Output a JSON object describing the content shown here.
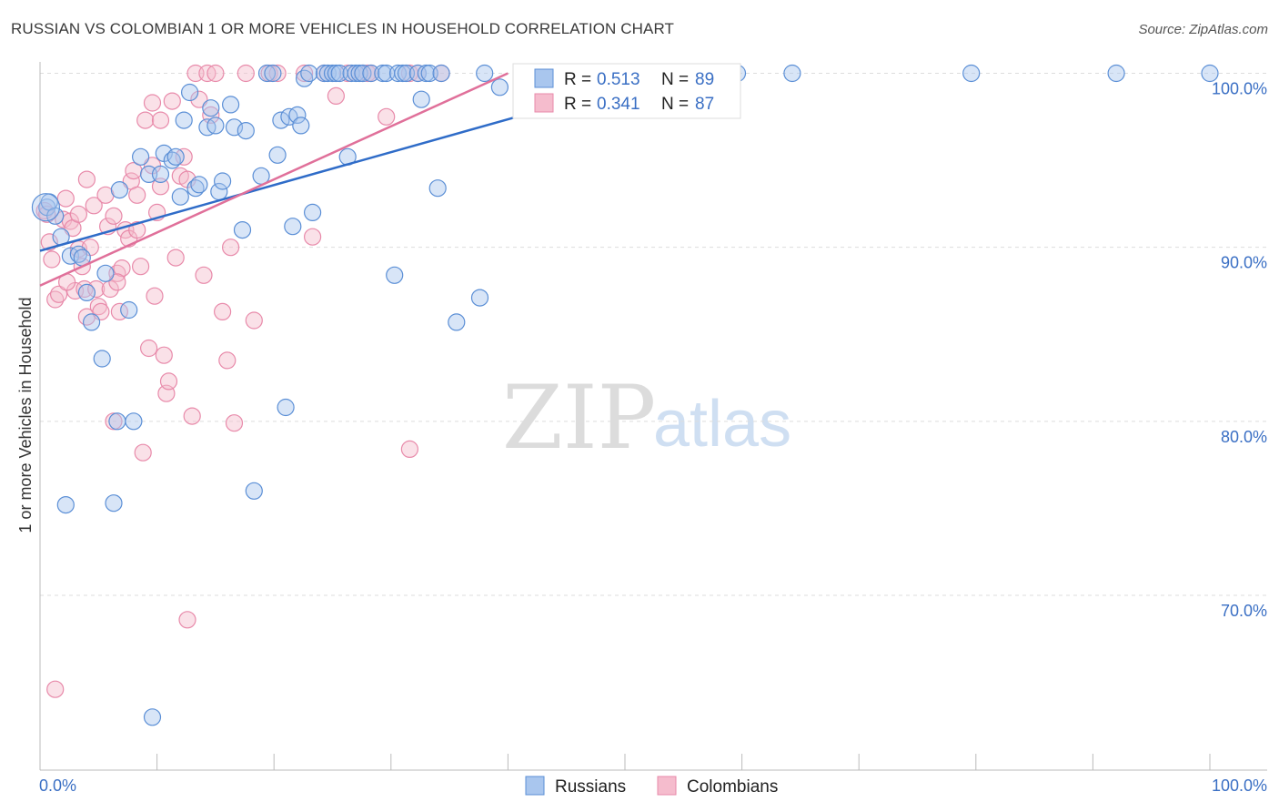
{
  "header": {
    "title": "RUSSIAN VS COLOMBIAN 1 OR MORE VEHICLES IN HOUSEHOLD CORRELATION CHART",
    "source": "Source: ZipAtlas.com"
  },
  "watermark": {
    "zip": "ZIP",
    "atlas": "atlas"
  },
  "colors": {
    "russians": "#5b8fd6",
    "russians_fill": "#a9c6ee",
    "russians_line": "#2f6cc8",
    "colombians": "#e88aaa",
    "colombians_fill": "#f5bccd",
    "colombians_line": "#e0709a",
    "accent_text": "#3a6fc4"
  },
  "legend_box": {
    "rows": [
      {
        "r_label": "R = ",
        "r_value": "0.513",
        "n_label": "N = ",
        "n_value": "89"
      },
      {
        "r_label": "R = ",
        "r_value": "0.341",
        "n_label": "N = ",
        "n_value": "87"
      }
    ]
  },
  "bottom_legend": [
    "Russians",
    "Colombians"
  ],
  "chart_data": {
    "type": "scatter",
    "title": "RUSSIAN VS COLOMBIAN 1 OR MORE VEHICLES IN HOUSEHOLD CORRELATION CHART",
    "xlabel": "",
    "ylabel": "1 or more Vehicles in Household",
    "xlim": [
      0,
      100
    ],
    "ylim": [
      59.5,
      101.5
    ],
    "x_tick_labels": [
      "0.0%",
      "100.0%"
    ],
    "y_ticks": [
      70,
      80,
      90,
      100
    ],
    "y_tick_labels": [
      "70.0%",
      "80.0%",
      "90.0%",
      "100.0%"
    ],
    "grid": true,
    "series": [
      {
        "name": "Russians",
        "r": 0.513,
        "n": 89,
        "trend": {
          "x": [
            0,
            54.0
          ],
          "y": [
            89.8,
            100.0
          ]
        },
        "points": [
          [
            0.6,
            92.3
          ],
          [
            0.8,
            92.6
          ],
          [
            1.3,
            91.8
          ],
          [
            1.8,
            90.6
          ],
          [
            2.2,
            75.2
          ],
          [
            2.6,
            89.5
          ],
          [
            3.3,
            89.6
          ],
          [
            3.6,
            89.4
          ],
          [
            4.0,
            87.4
          ],
          [
            4.4,
            85.7
          ],
          [
            5.3,
            83.6
          ],
          [
            5.6,
            88.5
          ],
          [
            6.3,
            75.3
          ],
          [
            6.6,
            80.0
          ],
          [
            6.8,
            93.3
          ],
          [
            7.6,
            86.4
          ],
          [
            8.0,
            80.0
          ],
          [
            8.6,
            95.2
          ],
          [
            9.3,
            94.2
          ],
          [
            10.3,
            94.2
          ],
          [
            10.6,
            95.4
          ],
          [
            11.3,
            95.0
          ],
          [
            11.6,
            95.2
          ],
          [
            12.0,
            92.9
          ],
          [
            12.3,
            97.3
          ],
          [
            12.8,
            98.9
          ],
          [
            13.3,
            93.4
          ],
          [
            13.6,
            93.6
          ],
          [
            14.3,
            96.9
          ],
          [
            14.6,
            98.0
          ],
          [
            15.0,
            97.0
          ],
          [
            15.3,
            93.2
          ],
          [
            15.6,
            93.8
          ],
          [
            16.3,
            98.2
          ],
          [
            16.6,
            96.9
          ],
          [
            17.3,
            91.0
          ],
          [
            17.6,
            96.7
          ],
          [
            18.3,
            76.0
          ],
          [
            18.9,
            94.1
          ],
          [
            19.4,
            100.0
          ],
          [
            19.9,
            100.0
          ],
          [
            20.3,
            95.3
          ],
          [
            20.6,
            97.3
          ],
          [
            21.0,
            80.8
          ],
          [
            21.3,
            97.5
          ],
          [
            21.6,
            91.2
          ],
          [
            22.0,
            97.6
          ],
          [
            22.3,
            97.0
          ],
          [
            22.6,
            99.7
          ],
          [
            23.0,
            100.0
          ],
          [
            23.3,
            92.0
          ],
          [
            24.3,
            100.0
          ],
          [
            24.6,
            100.0
          ],
          [
            25.0,
            100.0
          ],
          [
            25.3,
            100.0
          ],
          [
            25.6,
            100.0
          ],
          [
            26.3,
            95.2
          ],
          [
            26.6,
            100.0
          ],
          [
            27.0,
            100.0
          ],
          [
            27.3,
            100.0
          ],
          [
            27.6,
            100.0
          ],
          [
            28.3,
            100.0
          ],
          [
            29.3,
            100.0
          ],
          [
            29.6,
            100.0
          ],
          [
            30.3,
            88.4
          ],
          [
            30.6,
            100.0
          ],
          [
            31.0,
            100.0
          ],
          [
            31.3,
            100.0
          ],
          [
            32.3,
            100.0
          ],
          [
            32.6,
            98.5
          ],
          [
            33.0,
            100.0
          ],
          [
            33.3,
            100.0
          ],
          [
            34.0,
            93.4
          ],
          [
            34.3,
            100.0
          ],
          [
            35.6,
            85.7
          ],
          [
            37.6,
            87.1
          ],
          [
            38.0,
            100.0
          ],
          [
            39.3,
            99.2
          ],
          [
            41.6,
            100.0
          ],
          [
            44.6,
            100.0
          ],
          [
            47.6,
            100.0
          ],
          [
            51.3,
            100.0
          ],
          [
            56.6,
            100.0
          ],
          [
            59.6,
            100.0
          ],
          [
            64.3,
            100.0
          ],
          [
            79.6,
            100.0
          ],
          [
            92.0,
            100.0
          ],
          [
            100.0,
            100.0
          ],
          [
            9.6,
            63.0
          ]
        ]
      },
      {
        "name": "Colombians",
        "r": 0.341,
        "n": 87,
        "trend": {
          "x": [
            0,
            40.0
          ],
          "y": [
            87.8,
            100.0
          ]
        },
        "points": [
          [
            0.4,
            92.1
          ],
          [
            0.6,
            91.9
          ],
          [
            0.8,
            90.3
          ],
          [
            1.0,
            89.3
          ],
          [
            1.3,
            87.0
          ],
          [
            1.6,
            87.3
          ],
          [
            2.0,
            91.6
          ],
          [
            2.2,
            92.8
          ],
          [
            2.6,
            91.5
          ],
          [
            2.8,
            91.1
          ],
          [
            3.0,
            87.5
          ],
          [
            3.3,
            89.9
          ],
          [
            3.6,
            88.9
          ],
          [
            3.8,
            87.6
          ],
          [
            4.0,
            86.0
          ],
          [
            4.3,
            90.0
          ],
          [
            4.6,
            92.4
          ],
          [
            4.8,
            87.6
          ],
          [
            5.0,
            86.6
          ],
          [
            5.2,
            86.3
          ],
          [
            5.6,
            93.0
          ],
          [
            5.8,
            91.2
          ],
          [
            6.0,
            87.6
          ],
          [
            6.3,
            91.8
          ],
          [
            6.6,
            88.5
          ],
          [
            6.8,
            86.3
          ],
          [
            7.0,
            88.8
          ],
          [
            7.3,
            91.0
          ],
          [
            7.6,
            90.5
          ],
          [
            7.8,
            93.8
          ],
          [
            8.0,
            94.4
          ],
          [
            8.3,
            93.0
          ],
          [
            8.6,
            88.9
          ],
          [
            8.8,
            78.2
          ],
          [
            9.0,
            97.3
          ],
          [
            9.3,
            84.2
          ],
          [
            9.6,
            98.3
          ],
          [
            9.8,
            87.2
          ],
          [
            10.0,
            92.0
          ],
          [
            10.3,
            97.3
          ],
          [
            10.6,
            83.8
          ],
          [
            10.8,
            81.6
          ],
          [
            11.0,
            82.3
          ],
          [
            11.3,
            98.4
          ],
          [
            11.6,
            89.4
          ],
          [
            12.0,
            94.1
          ],
          [
            12.3,
            95.2
          ],
          [
            12.6,
            93.9
          ],
          [
            13.0,
            80.3
          ],
          [
            13.3,
            100.0
          ],
          [
            13.6,
            98.5
          ],
          [
            14.0,
            88.4
          ],
          [
            14.3,
            100.0
          ],
          [
            14.6,
            97.6
          ],
          [
            15.0,
            100.0
          ],
          [
            15.6,
            86.3
          ],
          [
            16.0,
            83.5
          ],
          [
            16.3,
            90.0
          ],
          [
            16.6,
            79.9
          ],
          [
            17.6,
            100.0
          ],
          [
            18.3,
            85.8
          ],
          [
            19.6,
            100.0
          ],
          [
            20.3,
            100.0
          ],
          [
            22.6,
            100.0
          ],
          [
            23.3,
            90.6
          ],
          [
            24.3,
            100.0
          ],
          [
            25.3,
            98.7
          ],
          [
            26.3,
            100.0
          ],
          [
            27.6,
            100.0
          ],
          [
            28.0,
            100.0
          ],
          [
            28.3,
            100.0
          ],
          [
            29.6,
            97.5
          ],
          [
            31.6,
            100.0
          ],
          [
            32.3,
            100.0
          ],
          [
            34.3,
            100.0
          ],
          [
            31.6,
            78.4
          ],
          [
            12.6,
            68.6
          ],
          [
            1.3,
            64.6
          ],
          [
            6.3,
            80.0
          ],
          [
            6.6,
            88.0
          ],
          [
            8.3,
            91.0
          ],
          [
            9.6,
            94.7
          ],
          [
            10.3,
            93.5
          ],
          [
            4.0,
            93.9
          ],
          [
            2.3,
            88.0
          ],
          [
            3.3,
            91.9
          ],
          [
            42.0,
            100.0
          ]
        ]
      }
    ]
  }
}
